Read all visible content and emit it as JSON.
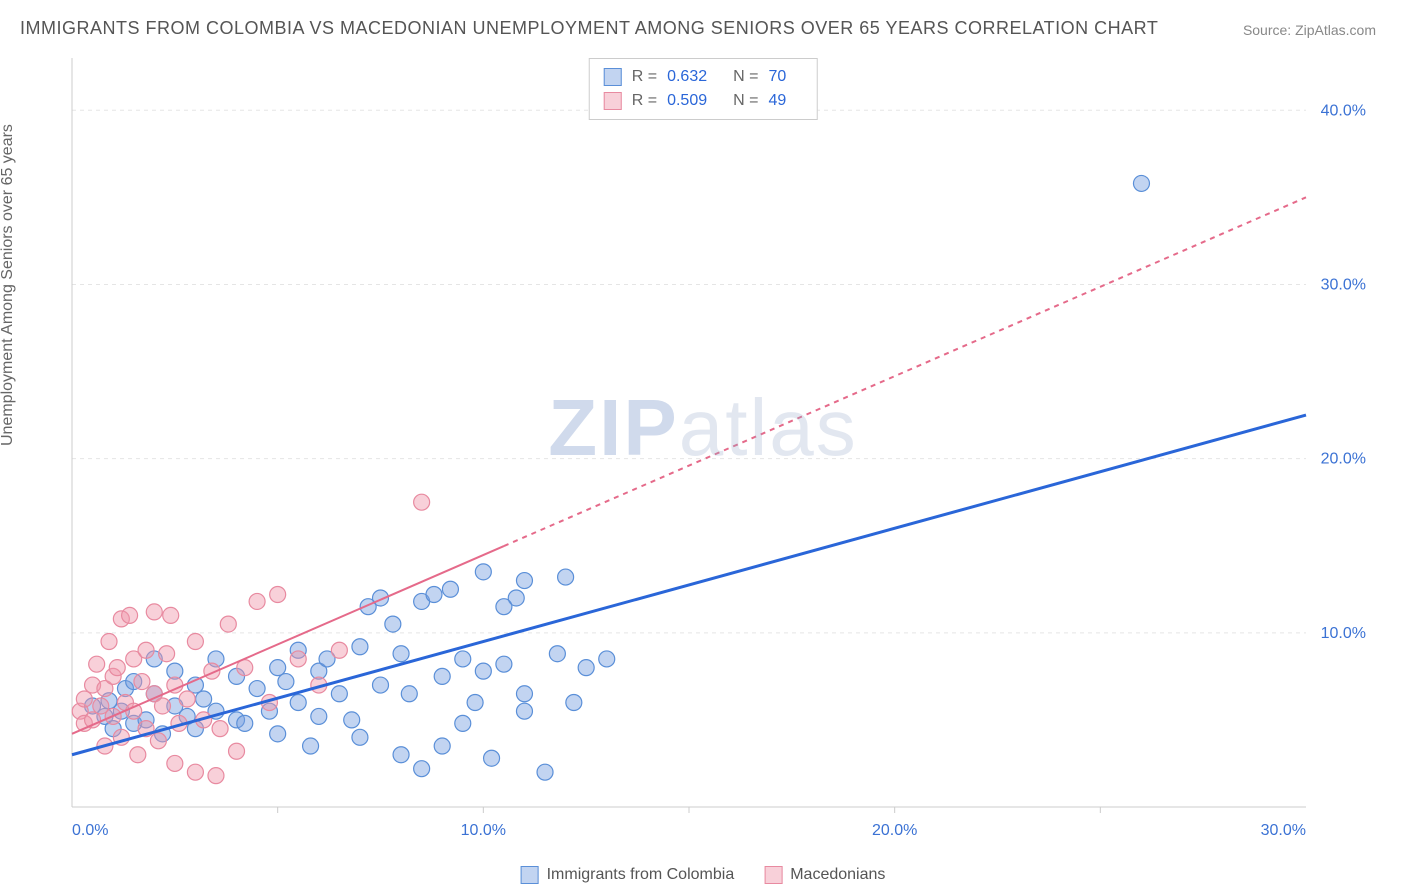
{
  "title": "IMMIGRANTS FROM COLOMBIA VS MACEDONIAN UNEMPLOYMENT AMONG SENIORS OVER 65 YEARS CORRELATION CHART",
  "source_label": "Source:",
  "source_value": "ZipAtlas.com",
  "y_axis_label": "Unemployment Among Seniors over 65 years",
  "watermark_zip": "ZIP",
  "watermark_atlas": "atlas",
  "chart": {
    "type": "scatter",
    "background_color": "#ffffff",
    "grid_color": "#e5e5e5",
    "axis_line_color": "#cccccc",
    "tick_label_color": "#3b72d4",
    "xlim": [
      0,
      30
    ],
    "ylim": [
      0,
      43
    ],
    "x_ticks": [
      0,
      10,
      20,
      30
    ],
    "x_tick_labels": [
      "0.0%",
      "10.0%",
      "20.0%",
      "30.0%"
    ],
    "y_ticks": [
      10,
      20,
      30,
      40
    ],
    "y_tick_labels": [
      "10.0%",
      "20.0%",
      "30.0%",
      "40.0%"
    ],
    "x_minor_step": 5,
    "series": [
      {
        "name": "Immigrants from Colombia",
        "color_fill": "rgba(120,160,225,0.45)",
        "color_stroke": "#5a8fd8",
        "trend_color": "#2a66d8",
        "trend_dash": "none",
        "trend_width": 3,
        "R": "0.632",
        "N": "70",
        "trend_x1": 0,
        "trend_y1": 3.0,
        "trend_x2": 30,
        "trend_y2": 22.5,
        "trend_solid_until_x": 30,
        "points": [
          [
            0.5,
            5.8
          ],
          [
            0.8,
            5.2
          ],
          [
            0.9,
            6.1
          ],
          [
            1.0,
            4.5
          ],
          [
            1.2,
            5.5
          ],
          [
            1.3,
            6.8
          ],
          [
            1.5,
            4.8
          ],
          [
            1.5,
            7.2
          ],
          [
            1.8,
            5.0
          ],
          [
            2.0,
            6.5
          ],
          [
            2.0,
            8.5
          ],
          [
            2.2,
            4.2
          ],
          [
            2.5,
            5.8
          ],
          [
            2.5,
            7.8
          ],
          [
            2.8,
            5.2
          ],
          [
            3.0,
            7.0
          ],
          [
            3.0,
            4.5
          ],
          [
            3.2,
            6.2
          ],
          [
            3.5,
            5.5
          ],
          [
            3.5,
            8.5
          ],
          [
            4.0,
            5.0
          ],
          [
            4.0,
            7.5
          ],
          [
            4.2,
            4.8
          ],
          [
            4.5,
            6.8
          ],
          [
            4.8,
            5.5
          ],
          [
            5.0,
            8.0
          ],
          [
            5.0,
            4.2
          ],
          [
            5.2,
            7.2
          ],
          [
            5.5,
            6.0
          ],
          [
            5.5,
            9.0
          ],
          [
            5.8,
            3.5
          ],
          [
            6.0,
            7.8
          ],
          [
            6.0,
            5.2
          ],
          [
            6.2,
            8.5
          ],
          [
            6.5,
            6.5
          ],
          [
            6.8,
            5.0
          ],
          [
            7.0,
            9.2
          ],
          [
            7.0,
            4.0
          ],
          [
            7.2,
            11.5
          ],
          [
            7.5,
            7.0
          ],
          [
            7.5,
            12.0
          ],
          [
            8.0,
            3.0
          ],
          [
            8.0,
            8.8
          ],
          [
            8.2,
            6.5
          ],
          [
            8.5,
            11.8
          ],
          [
            8.5,
            2.2
          ],
          [
            9.0,
            3.5
          ],
          [
            9.0,
            7.5
          ],
          [
            9.2,
            12.5
          ],
          [
            9.5,
            8.5
          ],
          [
            9.8,
            6.0
          ],
          [
            10.0,
            13.5
          ],
          [
            10.0,
            7.8
          ],
          [
            10.2,
            2.8
          ],
          [
            10.5,
            8.2
          ],
          [
            10.8,
            12.0
          ],
          [
            11.0,
            6.5
          ],
          [
            11.0,
            13.0
          ],
          [
            11.5,
            2.0
          ],
          [
            11.8,
            8.8
          ],
          [
            12.0,
            13.2
          ],
          [
            12.2,
            6.0
          ],
          [
            12.5,
            8.0
          ],
          [
            13.0,
            8.5
          ],
          [
            11.0,
            5.5
          ],
          [
            9.5,
            4.8
          ],
          [
            10.5,
            11.5
          ],
          [
            8.8,
            12.2
          ],
          [
            26.0,
            35.8
          ],
          [
            7.8,
            10.5
          ]
        ]
      },
      {
        "name": "Macedonians",
        "color_fill": "rgba(240,150,170,0.45)",
        "color_stroke": "#e88aa0",
        "trend_color": "#e56a8a",
        "trend_dash": "5,5",
        "trend_width": 2,
        "R": "0.509",
        "N": "49",
        "trend_x1": 0,
        "trend_y1": 4.2,
        "trend_x2": 30,
        "trend_y2": 35.0,
        "trend_solid_until_x": 10.5,
        "points": [
          [
            0.2,
            5.5
          ],
          [
            0.3,
            6.2
          ],
          [
            0.3,
            4.8
          ],
          [
            0.5,
            7.0
          ],
          [
            0.5,
            5.0
          ],
          [
            0.6,
            8.2
          ],
          [
            0.7,
            5.8
          ],
          [
            0.8,
            6.8
          ],
          [
            0.8,
            3.5
          ],
          [
            0.9,
            9.5
          ],
          [
            1.0,
            7.5
          ],
          [
            1.0,
            5.2
          ],
          [
            1.1,
            8.0
          ],
          [
            1.2,
            4.0
          ],
          [
            1.2,
            10.8
          ],
          [
            1.3,
            6.0
          ],
          [
            1.4,
            11.0
          ],
          [
            1.5,
            5.5
          ],
          [
            1.5,
            8.5
          ],
          [
            1.6,
            3.0
          ],
          [
            1.7,
            7.2
          ],
          [
            1.8,
            4.5
          ],
          [
            1.8,
            9.0
          ],
          [
            2.0,
            6.5
          ],
          [
            2.0,
            11.2
          ],
          [
            2.1,
            3.8
          ],
          [
            2.2,
            5.8
          ],
          [
            2.3,
            8.8
          ],
          [
            2.4,
            11.0
          ],
          [
            2.5,
            2.5
          ],
          [
            2.5,
            7.0
          ],
          [
            2.6,
            4.8
          ],
          [
            2.8,
            6.2
          ],
          [
            3.0,
            2.0
          ],
          [
            3.0,
            9.5
          ],
          [
            3.2,
            5.0
          ],
          [
            3.4,
            7.8
          ],
          [
            3.5,
            1.8
          ],
          [
            3.6,
            4.5
          ],
          [
            4.0,
            3.2
          ],
          [
            4.2,
            8.0
          ],
          [
            4.5,
            11.8
          ],
          [
            4.8,
            6.0
          ],
          [
            5.0,
            12.2
          ],
          [
            5.5,
            8.5
          ],
          [
            6.0,
            7.0
          ],
          [
            6.5,
            9.0
          ],
          [
            8.5,
            17.5
          ],
          [
            3.8,
            10.5
          ]
        ]
      }
    ]
  },
  "bottom_legend": [
    {
      "label": "Immigrants from Colombia",
      "fill": "rgba(120,160,225,0.45)",
      "stroke": "#5a8fd8"
    },
    {
      "label": "Macedonians",
      "fill": "rgba(240,150,170,0.45)",
      "stroke": "#e88aa0"
    }
  ]
}
